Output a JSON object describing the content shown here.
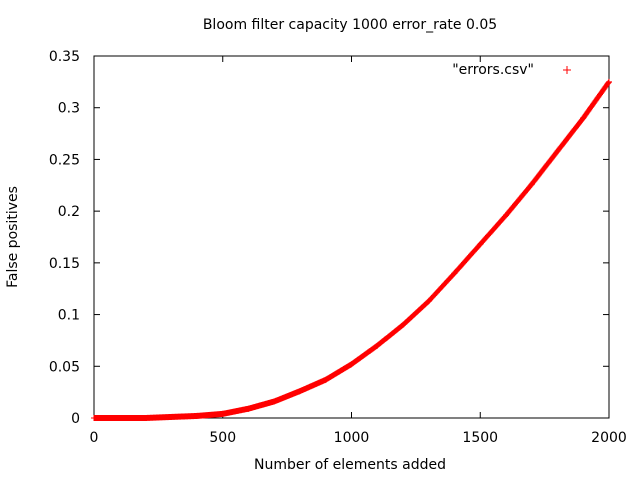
{
  "chart_data": {
    "type": "scatter",
    "title": "Bloom filter capacity 1000 error_rate 0.05",
    "xlabel": "Number of elements added",
    "ylabel": "False positives",
    "xlim": [
      0,
      2000
    ],
    "ylim": [
      0,
      0.35
    ],
    "x_ticks": [
      0,
      500,
      1000,
      1500,
      2000
    ],
    "x_tick_labels": [
      "0",
      "500",
      "1000",
      "1500",
      "2000"
    ],
    "y_ticks": [
      0,
      0.05,
      0.1,
      0.15,
      0.2,
      0.25,
      0.3,
      0.35
    ],
    "y_tick_labels": [
      "0",
      "0.05",
      "0.1",
      "0.15",
      "0.2",
      "0.25",
      "0.3",
      "0.35"
    ],
    "grid": false,
    "legend": {
      "position": "top-right",
      "label": "\"errors.csv\"",
      "marker": "+"
    },
    "series": [
      {
        "name": "\"errors.csv\"",
        "marker": "+",
        "color": "#ff0000",
        "x": [
          0,
          100,
          200,
          300,
          400,
          500,
          600,
          700,
          800,
          900,
          1000,
          1100,
          1200,
          1300,
          1400,
          1500,
          1600,
          1700,
          1800,
          1900,
          2000
        ],
        "y": [
          0,
          0,
          0,
          0.001,
          0.002,
          0.004,
          0.009,
          0.016,
          0.026,
          0.037,
          0.052,
          0.07,
          0.09,
          0.113,
          0.14,
          0.168,
          0.196,
          0.226,
          0.258,
          0.29,
          0.325
        ]
      }
    ]
  }
}
